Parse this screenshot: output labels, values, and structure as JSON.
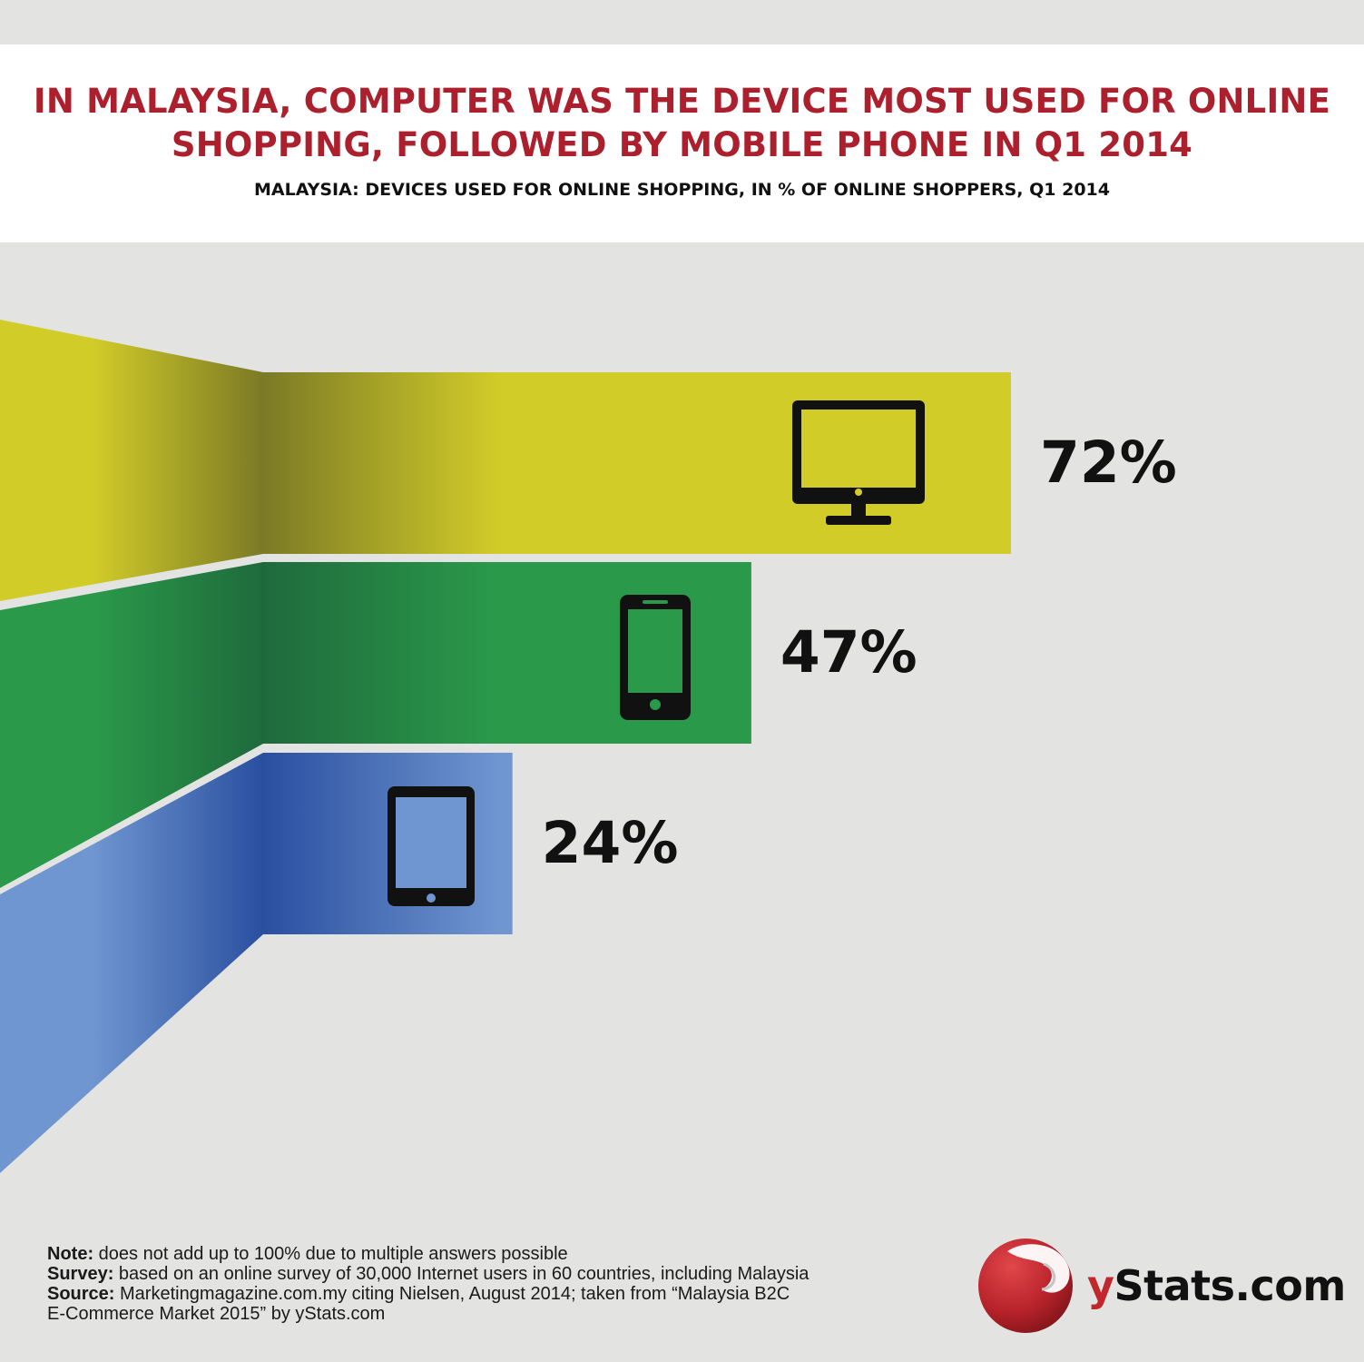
{
  "header": {
    "title_line1": "IN MALAYSIA, COMPUTER WAS THE DEVICE MOST USED FOR ONLINE",
    "title_line2": "SHOPPING, FOLLOWED BY MOBILE PHONE IN Q1 2014",
    "subtitle": "MALAYSIA: DEVICES USED FOR ONLINE SHOPPING, IN % OF ONLINE SHOPPERS, Q1 2014"
  },
  "chart_data": {
    "type": "bar",
    "orientation": "horizontal",
    "categories": [
      "Computer",
      "Mobile phone",
      "Tablet"
    ],
    "values": [
      72,
      47,
      24
    ],
    "value_labels": [
      "72%",
      "47%",
      "24%"
    ],
    "icons": [
      "computer-monitor-icon",
      "mobile-phone-icon",
      "tablet-icon"
    ],
    "colors": [
      "#d2cc28",
      "#2a9a4a",
      "#6f96d0"
    ],
    "dark_colors": [
      "#7b7a26",
      "#1f6a3c",
      "#2a4fa0"
    ],
    "title": "IN MALAYSIA, COMPUTER WAS THE DEVICE MOST USED FOR ONLINE SHOPPING, FOLLOWED BY MOBILE PHONE IN Q1 2014",
    "subtitle": "MALAYSIA: DEVICES USED FOR ONLINE SHOPPING, IN % OF ONLINE SHOPPERS, Q1 2014",
    "unit": "%",
    "grid": false,
    "legend": "none"
  },
  "notes": {
    "note_label": "Note:",
    "note_text": " does not add up to 100% due to multiple answers possible",
    "survey_label": "Survey:",
    "survey_text": " based on an online survey of 30,000 Internet users in 60 countries, including Malaysia",
    "source_label": "Source:",
    "source_text": " Marketingmagazine.com.my citing Nielsen, August 2014; taken from “Malaysia B2C",
    "source_text2": "E-Commerce Market 2015” by yStats.com"
  },
  "logo": {
    "y": "y",
    "rest": "Stats.com",
    "brand_color": "#c1272d"
  }
}
